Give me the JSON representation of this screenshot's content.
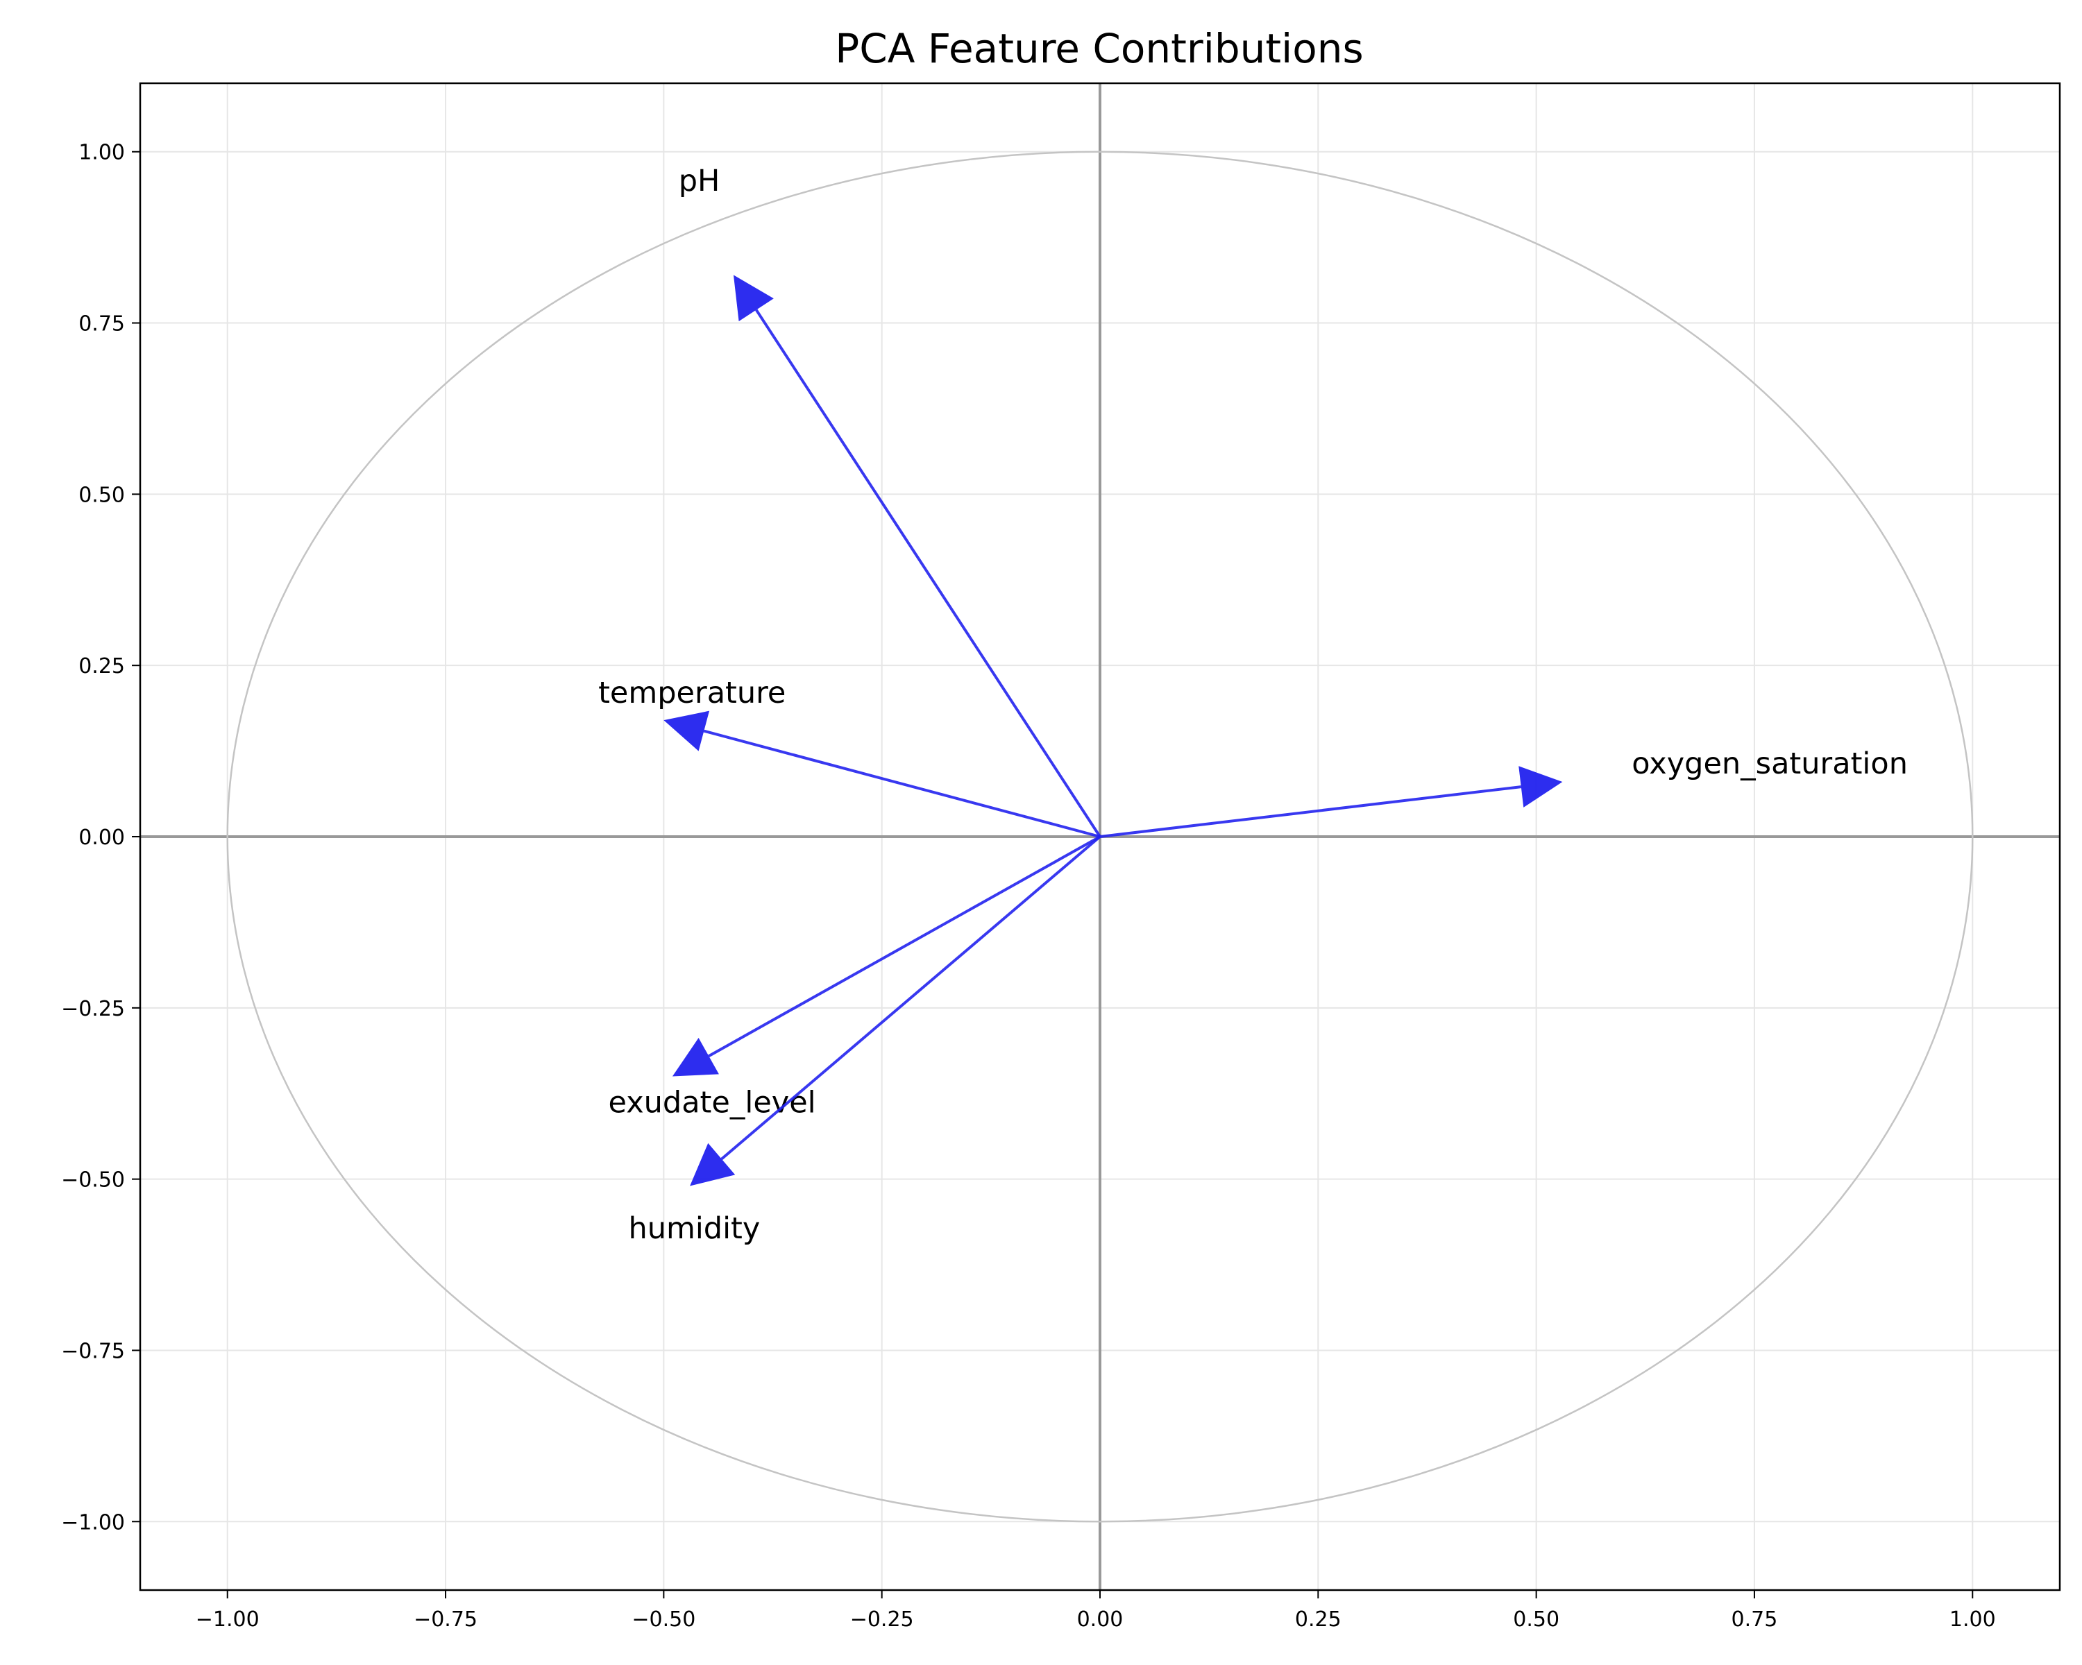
{
  "chart_data": {
    "type": "biplot",
    "title": "PCA Feature Contributions",
    "xlabel": "",
    "ylabel": "",
    "xlim": [
      -1.1,
      1.1
    ],
    "ylim": [
      -1.1,
      1.1
    ],
    "xticks": [
      -1.0,
      -0.75,
      -0.5,
      -0.25,
      0.0,
      0.25,
      0.5,
      0.75,
      1.0
    ],
    "yticks": [
      -1.0,
      -0.75,
      -0.5,
      -0.25,
      0.0,
      0.25,
      0.5,
      0.75,
      1.0
    ],
    "xtick_labels": [
      "−1.00",
      "−0.75",
      "−0.50",
      "−0.25",
      "0.00",
      "0.25",
      "0.50",
      "0.75",
      "1.00"
    ],
    "ytick_labels": [
      "−1.00",
      "−0.75",
      "−0.50",
      "−0.25",
      "0.00",
      "0.25",
      "0.50",
      "0.75",
      "1.00"
    ],
    "grid": true,
    "unit_circle": true,
    "vectors": [
      {
        "name": "pH",
        "x": -0.42,
        "y": 0.82
      },
      {
        "name": "temperature",
        "x": -0.5,
        "y": 0.17
      },
      {
        "name": "oxygen_saturation",
        "x": 0.53,
        "y": 0.08
      },
      {
        "name": "exudate_level",
        "x": -0.49,
        "y": -0.35
      },
      {
        "name": "humidity",
        "x": -0.47,
        "y": -0.51
      }
    ],
    "colors": {
      "vector": "#2222ee",
      "circle": "#c4c4c4",
      "axes": "#999999",
      "grid": "#e6e6e6"
    }
  }
}
